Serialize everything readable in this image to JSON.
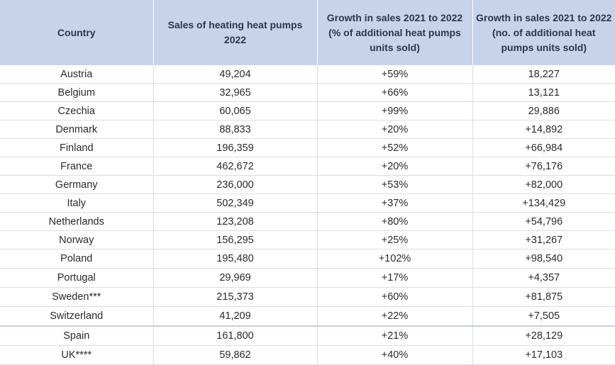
{
  "table": {
    "headers": [
      "Country",
      "Sales of heating heat pumps 2022",
      "Growth in sales 2021 to 2022 (% of additional heat pumps units sold)",
      "Growth in sales 2021 to 2022 (no. of additional heat pumps units sold)"
    ],
    "rows": [
      [
        "Austria",
        "49,204",
        "+59%",
        "18,227"
      ],
      [
        "Belgium",
        "32,965",
        "+66%",
        "13,121"
      ],
      [
        "Czechia",
        "60,065",
        "+99%",
        "29,886"
      ],
      [
        "Denmark",
        "88,833",
        "+20%",
        "+14,892"
      ],
      [
        "Finland",
        "196,359",
        "+52%",
        "+66,984"
      ],
      [
        "France",
        "462,672",
        "+20%",
        "+76,176"
      ],
      [
        "Germany",
        "236,000",
        "+53%",
        "+82,000"
      ],
      [
        "Italy",
        "502,349",
        "+37%",
        "+134,429"
      ],
      [
        "Netherlands",
        "123,208",
        "+80%",
        "+54,796"
      ],
      [
        "Norway",
        "156,295",
        "+25%",
        "+31,267"
      ],
      [
        "Poland",
        "195,480",
        "+102%",
        "+98,540"
      ],
      [
        "Portugal",
        "29,969",
        "+17%",
        "+4,357"
      ],
      [
        "Sweden***",
        "215,373",
        "+60%",
        "+81,875"
      ],
      [
        "Switzerland",
        "41,209",
        "+22%",
        "+7,505"
      ],
      [
        "Spain",
        "161,800",
        "+21%",
        "+28,129"
      ],
      [
        "UK****",
        "59,862",
        "+40%",
        "+17,103"
      ]
    ]
  },
  "colors": {
    "header_bg": "#c7d3ea",
    "header_text": "#2d3550",
    "grid": "#d9dde6"
  }
}
